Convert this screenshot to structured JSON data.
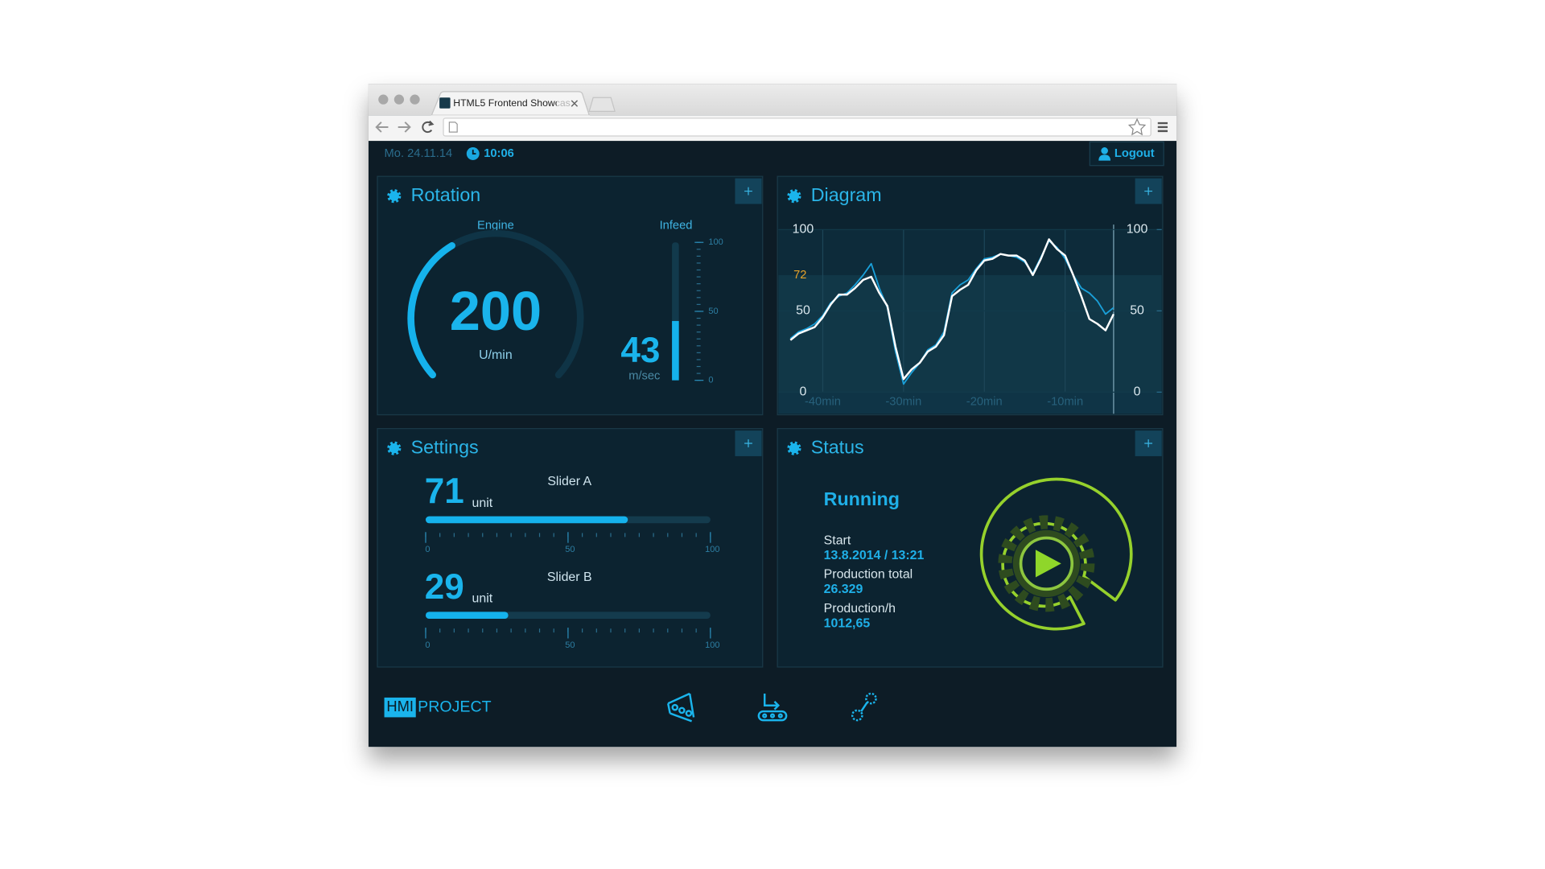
{
  "browser": {
    "tab_title": "HTML5 Frontend Showcas"
  },
  "header": {
    "date": "Mo. 24.11.14",
    "time": "10:06",
    "logout": "Logout"
  },
  "rotation": {
    "title": "Rotation",
    "engine": {
      "label": "Engine",
      "value": 200,
      "unit": "U/min"
    },
    "infeed": {
      "label": "Infeed",
      "value": 43,
      "unit": "m/sec",
      "ylim": [
        0,
        100
      ],
      "yticks": [
        0,
        50,
        100
      ]
    }
  },
  "diagram": {
    "title": "Diagram",
    "type": "line",
    "x": [
      -44,
      -43,
      -42,
      -41,
      -40,
      -39,
      -38,
      -37,
      -36,
      -35,
      -34,
      -33,
      -32,
      -31,
      -30,
      -29,
      -28,
      -27,
      -26,
      -25,
      -24,
      -23,
      -22,
      -21,
      -20,
      -19,
      -18,
      -17,
      -16,
      -15,
      -14,
      -13,
      -12,
      -11,
      -10,
      -9,
      -8,
      -7,
      -6,
      -5,
      -4
    ],
    "xlim": [
      -44,
      -4
    ],
    "xticks": [
      {
        "value": -40,
        "label": "-40min"
      },
      {
        "value": -30,
        "label": "-30min"
      },
      {
        "value": -20,
        "label": "-20min"
      },
      {
        "value": -10,
        "label": "-10min"
      }
    ],
    "ylim": [
      0,
      100
    ],
    "yticks": [
      0,
      50,
      100
    ],
    "y2lim": [
      0,
      100
    ],
    "y2ticks": [
      0,
      50,
      100
    ],
    "threshold": 72,
    "series": [
      {
        "color": "#1a9fd8",
        "values": [
          33,
          37,
          39,
          42,
          47,
          55,
          59,
          61,
          66,
          72,
          79,
          64,
          52,
          25,
          5,
          12,
          18,
          26,
          29,
          37,
          61,
          66,
          69,
          76,
          82,
          83,
          85,
          84,
          83,
          80,
          73,
          83,
          93,
          89,
          82,
          72,
          64,
          61,
          56,
          48,
          52
        ]
      },
      {
        "color": "#ffffff",
        "values": [
          32,
          36,
          38,
          40,
          46,
          54,
          60,
          60,
          64,
          69,
          71,
          61,
          53,
          28,
          8,
          14,
          18,
          25,
          28,
          35,
          59,
          63,
          66,
          75,
          81,
          82,
          85,
          84,
          84,
          81,
          72,
          82,
          94,
          88,
          84,
          72,
          59,
          45,
          42,
          38,
          48
        ]
      }
    ]
  },
  "settings": {
    "title": "Settings",
    "sliders": [
      {
        "label": "Slider A",
        "value": 71,
        "unit": "unit",
        "xlim": [
          0,
          100
        ],
        "xticks": [
          0,
          50,
          100
        ]
      },
      {
        "label": "Slider B",
        "value": 29,
        "unit": "unit",
        "xlim": [
          0,
          100
        ],
        "xticks": [
          0,
          50,
          100
        ]
      }
    ]
  },
  "status": {
    "title": "Status",
    "state": "Running",
    "fields": [
      {
        "label": "Start",
        "value": "13.8.2014 / 13:21"
      },
      {
        "label": "Production total",
        "value": "26.329"
      },
      {
        "label": "Production/h",
        "value": "1012,65"
      }
    ]
  },
  "footer": {
    "logo_mark": "HMI",
    "logo_text": "PROJECT"
  }
}
